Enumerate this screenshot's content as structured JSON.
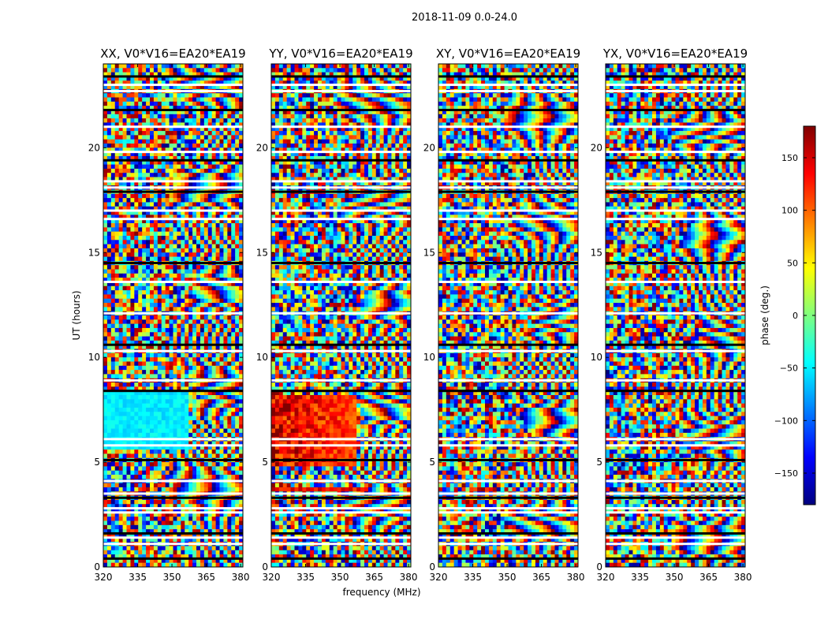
{
  "figure_title": "2018-11-09 0.0-24.0",
  "chart_data": {
    "type": "heatmap",
    "title": "2018-11-09 0.0-24.0",
    "xlabel": "frequency (MHz)",
    "ylabel": "UT (hours)",
    "xlim": [
      320,
      381
    ],
    "ylim": [
      0,
      24
    ],
    "xticks": [
      "320",
      "335",
      "350",
      "365",
      "380"
    ],
    "xtick_values": [
      320,
      335,
      350,
      365,
      380
    ],
    "yticks": [
      "0",
      "5",
      "10",
      "15",
      "20"
    ],
    "ytick_values": [
      0,
      5,
      10,
      15,
      20
    ],
    "panels": [
      {
        "title": "XX, V0*V16=EA20*EA19",
        "polarization": "XX"
      },
      {
        "title": "YY, V0*V16=EA20*EA19",
        "polarization": "YY"
      },
      {
        "title": "XY, V0*V16=EA20*EA19",
        "polarization": "XY"
      },
      {
        "title": "YX, V0*V16=EA20*EA19",
        "polarization": "YX"
      }
    ],
    "colorbar": {
      "label": "phase (deg.)",
      "range": [
        -180,
        180
      ],
      "ticks": [
        "150",
        "100",
        "50",
        "0",
        "−50",
        "−100",
        "−150"
      ],
      "tick_values": [
        150,
        100,
        50,
        0,
        -50,
        -100,
        -150
      ],
      "colormap": "jet"
    },
    "flagged_ut_hours": [
      0.4,
      1.1,
      1.4,
      1.6,
      2.6,
      2.8,
      3.3,
      3.5,
      4.1,
      5.1,
      5.8,
      6.1,
      8.4,
      8.9,
      10.3,
      10.6,
      12.1,
      13.6,
      14.5,
      16.6,
      17.0,
      17.9,
      18.1,
      18.4,
      19.4,
      19.8,
      21.0,
      21.8,
      22.7,
      23.0,
      23.4
    ]
  },
  "colors": {
    "jet": [
      "#00007f",
      "#0000ff",
      "#007fff",
      "#00ffff",
      "#7fff7f",
      "#ffff00",
      "#ff7f00",
      "#ff0000",
      "#7f0000"
    ],
    "flag_white": "#ffffff",
    "flag_black": "#000000"
  }
}
